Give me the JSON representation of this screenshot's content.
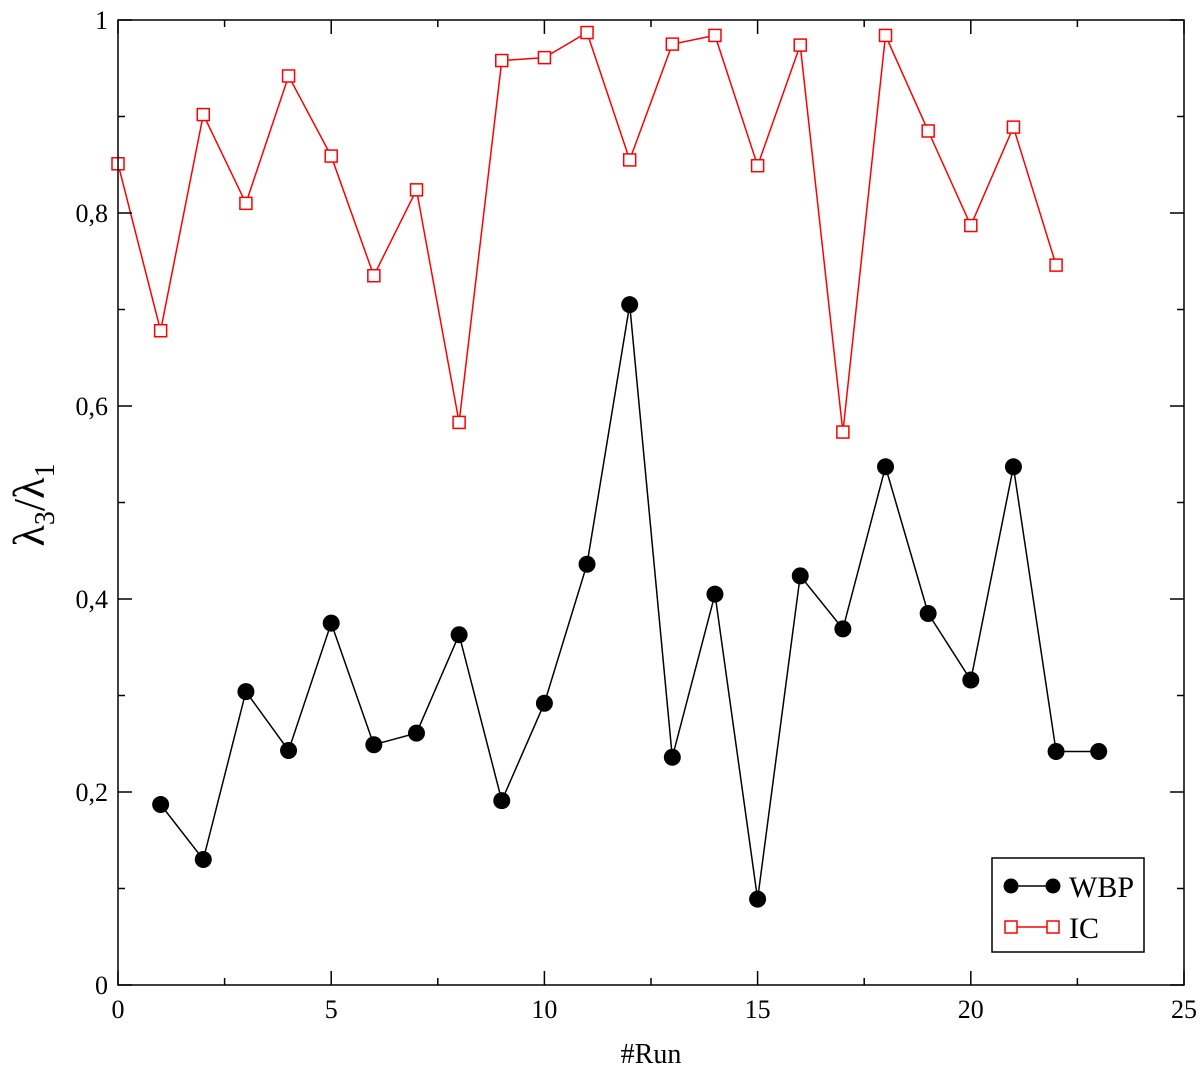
{
  "chart_data": {
    "type": "line",
    "xlabel": "#Run",
    "ylabel": {
      "main": "λ",
      "sub1": "3",
      "sep": "/",
      "main2": "λ",
      "sub2": "1"
    },
    "xlim": [
      0,
      25
    ],
    "ylim": [
      0,
      1
    ],
    "x_major_ticks": [
      0,
      5,
      10,
      15,
      20,
      25
    ],
    "x_tick_labels": [
      "0",
      "5",
      "10",
      "15",
      "20",
      "25"
    ],
    "x_minor_ticks": [
      2.5,
      7.5,
      12.5,
      17.5,
      22.5
    ],
    "y_major_ticks": [
      0,
      0.2,
      0.4,
      0.6,
      0.8,
      1
    ],
    "y_tick_labels": [
      "0",
      "0,2",
      "0,4",
      "0,6",
      "0,8",
      "1"
    ],
    "y_minor_ticks": [
      0.1,
      0.3,
      0.5,
      0.7,
      0.9
    ],
    "grid": false,
    "legend_position": "bottom-right",
    "series": [
      {
        "name": "WBP",
        "color": "#000000",
        "marker": "filled-circle",
        "x": [
          1,
          2,
          3,
          4,
          5,
          6,
          7,
          8,
          9,
          10,
          11,
          12,
          13,
          14,
          15,
          16,
          17,
          18,
          19,
          20,
          21,
          22,
          23
        ],
        "values": [
          0.187,
          0.13,
          0.304,
          0.243,
          0.375,
          0.249,
          0.261,
          0.363,
          0.191,
          0.292,
          0.436,
          0.705,
          0.236,
          0.405,
          0.089,
          0.424,
          0.369,
          0.537,
          0.385,
          0.316,
          0.537,
          0.242,
          0.242
        ]
      },
      {
        "name": "IC",
        "color": "#ff0000",
        "marker": "open-square",
        "x": [
          0,
          1,
          2,
          3,
          4,
          5,
          6,
          7,
          8,
          9,
          10,
          11,
          12,
          13,
          14,
          15,
          16,
          17,
          18,
          19,
          20,
          21,
          22
        ],
        "values": [
          0.851,
          0.678,
          0.902,
          0.81,
          0.942,
          0.859,
          0.735,
          0.824,
          0.583,
          0.958,
          0.961,
          0.987,
          0.855,
          0.975,
          0.984,
          0.849,
          0.974,
          0.573,
          0.984,
          0.885,
          0.787,
          0.889,
          0.746
        ]
      }
    ]
  }
}
